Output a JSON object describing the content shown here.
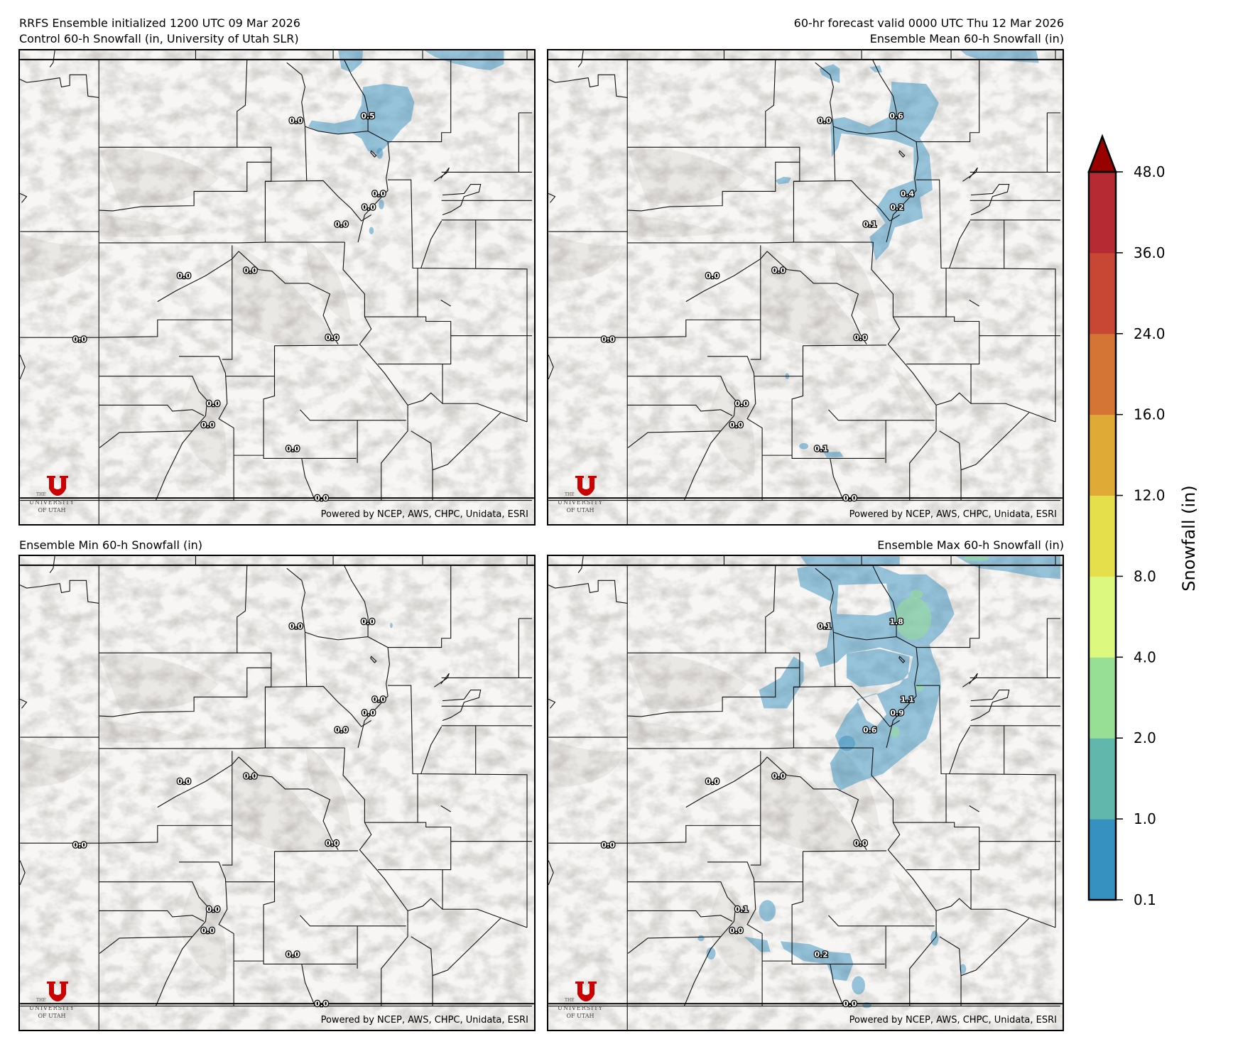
{
  "header": {
    "left_line1": "RRFS Ensemble initialized 1200 UTC 09 Mar 2026",
    "left_line2": "Control 60-h Snowfall (in, University of Utah SLR)",
    "right_line1": "60-hr forecast valid 0000 UTC Thu 12 Mar 2026",
    "right_line2": "Ensemble Mean 60-h Snowfall (in)"
  },
  "panels": [
    {
      "id": "control",
      "title": "Control 60-h Snowfall (in, University of Utah SLR)",
      "point_labels": [
        "0.0",
        "0.5",
        "0.0",
        "0.0",
        "0.0",
        "0.0",
        "0.0",
        "0.0",
        "0.0",
        "0.0",
        "0.0",
        "0.0",
        "0.0"
      ]
    },
    {
      "id": "mean",
      "title": "Ensemble Mean 60-h Snowfall (in)",
      "point_labels": [
        "0.0",
        "0.6",
        "0.4",
        "0.2",
        "0.1",
        "0.0",
        "0.0",
        "0.0",
        "0.0",
        "0.0",
        "0.0",
        "0.1",
        "0.0"
      ]
    },
    {
      "id": "min",
      "title": "Ensemble Min 60-h Snowfall (in)",
      "point_labels": [
        "0.0",
        "0.0",
        "0.0",
        "0.0",
        "0.0",
        "0.0",
        "0.0",
        "0.0",
        "0.0",
        "0.0",
        "0.0",
        "0.0",
        "0.0"
      ]
    },
    {
      "id": "max",
      "title": "Ensemble Max 60-h Snowfall (in)",
      "point_labels": [
        "0.1",
        "1.8",
        "1.1",
        "0.9",
        "0.6",
        "0.0",
        "0.0",
        "0.0",
        "0.0",
        "0.1",
        "0.0",
        "0.2",
        "0.0"
      ]
    }
  ],
  "credits": "Powered by NCEP, AWS, CHPC, Unidata, ESRI",
  "logo": {
    "mark": "U",
    "the": "THE",
    "university": "UNIVERSITY",
    "of_utah": "OF UTAH",
    "color": "#cc0000"
  },
  "colorbar": {
    "label": "Snowfall (in)",
    "ticks": [
      "0.1",
      "1.0",
      "2.0",
      "4.0",
      "8.0",
      "12.0",
      "16.0",
      "24.0",
      "36.0",
      "48.0"
    ],
    "colors": [
      "#3690c0",
      "#62b7ac",
      "#98df96",
      "#dcf87e",
      "#e5df4b",
      "#dfaa36",
      "#d47535",
      "#c74634",
      "#b62b33"
    ],
    "over_color": "#990000",
    "extend": "max"
  }
}
